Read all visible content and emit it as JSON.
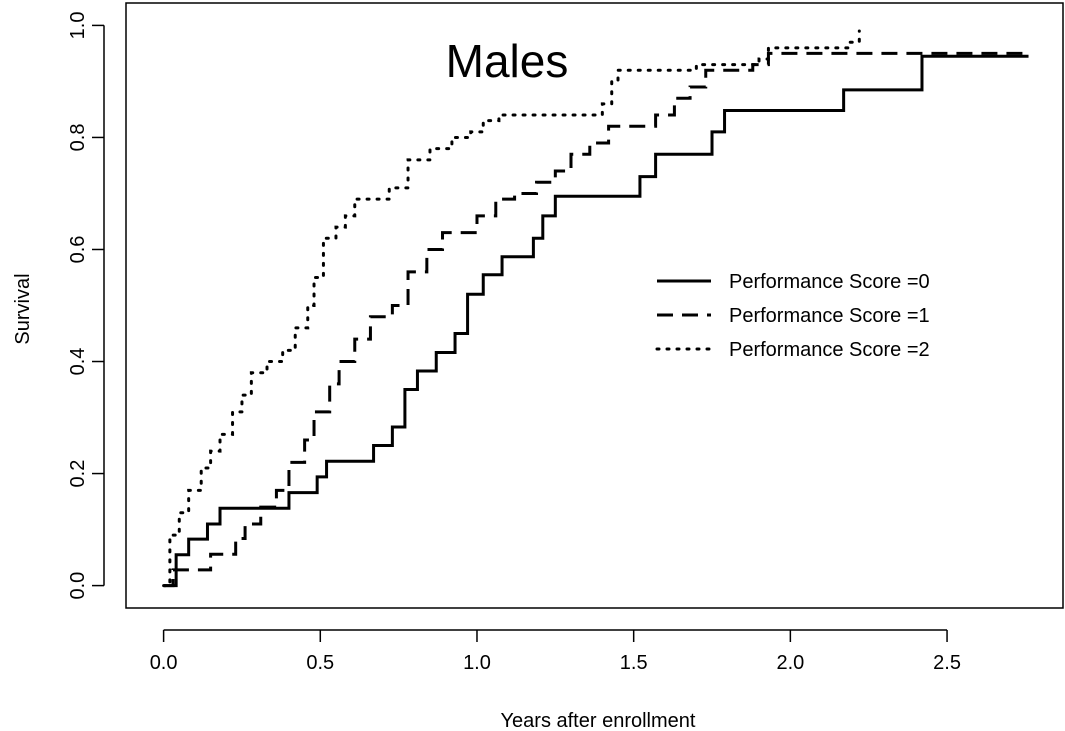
{
  "chart_data": {
    "type": "line",
    "step": true,
    "title": "Males",
    "xlabel": "Years after enrollment",
    "ylabel": "Survival",
    "xlim": [
      -0.12,
      2.87
    ],
    "ylim": [
      -0.04,
      1.04
    ],
    "xticks": [
      0.0,
      0.5,
      1.0,
      1.5,
      2.0,
      2.5
    ],
    "xtick_labels": [
      "0.0",
      "0.5",
      "1.0",
      "1.5",
      "2.0",
      "2.5"
    ],
    "yticks": [
      0.0,
      0.2,
      0.4,
      0.6,
      0.8,
      1.0
    ],
    "ytick_labels": [
      "0.0",
      "0.2",
      "0.4",
      "0.6",
      "0.8",
      "1.0"
    ],
    "grid": false,
    "legend_position": "right",
    "series": [
      {
        "name": "Performance Score =0",
        "dash": "solid",
        "x": [
          0,
          0.04,
          0.08,
          0.14,
          0.18,
          0.4,
          0.49,
          0.52,
          0.67,
          0.73,
          0.77,
          0.81,
          0.87,
          0.93,
          0.97,
          1.02,
          1.08,
          1.18,
          1.21,
          1.25,
          1.52,
          1.57,
          1.75,
          1.79,
          2.17,
          2.42,
          2.76
        ],
        "y": [
          0,
          0.055,
          0.083,
          0.11,
          0.138,
          0.166,
          0.194,
          0.222,
          0.25,
          0.283,
          0.35,
          0.383,
          0.416,
          0.45,
          0.52,
          0.555,
          0.587,
          0.62,
          0.66,
          0.695,
          0.73,
          0.77,
          0.81,
          0.848,
          0.885,
          0.945,
          0.945
        ]
      },
      {
        "name": "Performance Score =1",
        "dash": "dashed",
        "x": [
          0,
          0.03,
          0.15,
          0.23,
          0.26,
          0.31,
          0.36,
          0.4,
          0.45,
          0.48,
          0.53,
          0.56,
          0.61,
          0.66,
          0.73,
          0.78,
          0.84,
          0.89,
          1.0,
          1.06,
          1.12,
          1.19,
          1.25,
          1.3,
          1.36,
          1.42,
          1.57,
          1.63,
          1.68,
          1.73,
          1.88,
          1.93,
          2.76
        ],
        "y": [
          0,
          0.028,
          0.056,
          0.084,
          0.11,
          0.14,
          0.17,
          0.22,
          0.26,
          0.31,
          0.36,
          0.4,
          0.44,
          0.48,
          0.5,
          0.56,
          0.6,
          0.63,
          0.66,
          0.69,
          0.7,
          0.72,
          0.74,
          0.77,
          0.79,
          0.82,
          0.84,
          0.87,
          0.89,
          0.92,
          0.93,
          0.95,
          0.95
        ]
      },
      {
        "name": "Performance Score =2",
        "dash": "dotted",
        "x": [
          0,
          0.02,
          0.05,
          0.08,
          0.12,
          0.15,
          0.18,
          0.22,
          0.25,
          0.28,
          0.33,
          0.38,
          0.42,
          0.46,
          0.48,
          0.51,
          0.55,
          0.58,
          0.61,
          0.72,
          0.78,
          0.85,
          0.92,
          0.98,
          1.02,
          1.07,
          1.4,
          1.43,
          1.45,
          1.7,
          1.9,
          1.93,
          2.19,
          2.22
        ],
        "y": [
          0,
          0.09,
          0.13,
          0.17,
          0.21,
          0.24,
          0.27,
          0.31,
          0.34,
          0.38,
          0.4,
          0.42,
          0.46,
          0.5,
          0.55,
          0.62,
          0.64,
          0.66,
          0.69,
          0.71,
          0.76,
          0.78,
          0.8,
          0.81,
          0.83,
          0.84,
          0.86,
          0.9,
          0.92,
          0.93,
          0.94,
          0.96,
          0.97,
          0.99
        ]
      }
    ]
  }
}
